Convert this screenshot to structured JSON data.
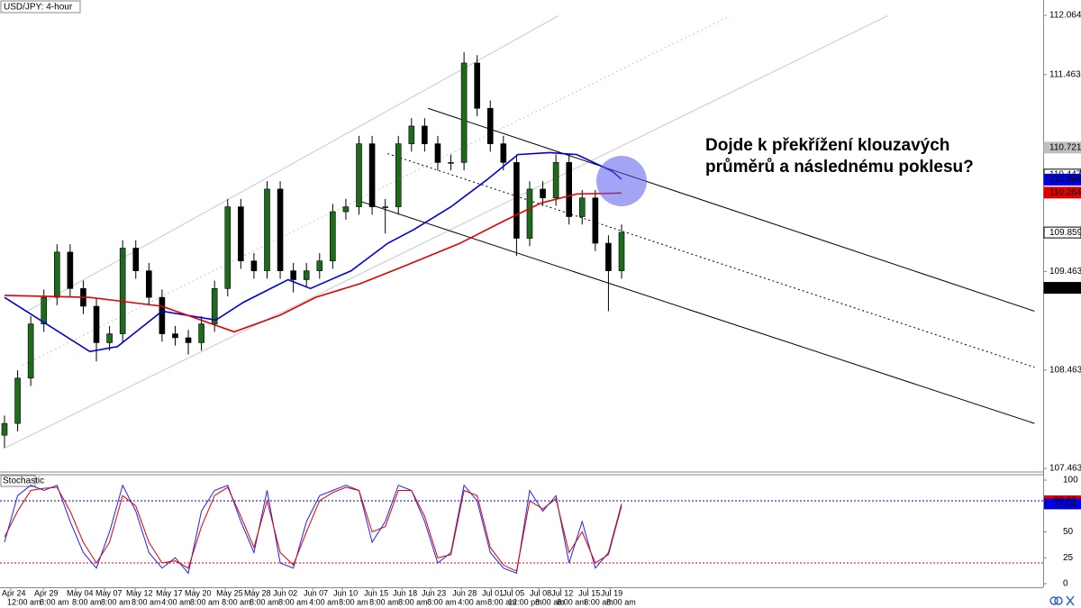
{
  "chart_data": {
    "type": "candlestick",
    "title": "USD/JPY: 4-hour",
    "annotation": [
      "Dojde k překřížení klouzavých",
      "průměrů a následnému poklesu?"
    ],
    "ylim": [
      107.436,
      112.22
    ],
    "yticks": [
      112.064,
      111.463,
      109.463,
      108.463,
      107.463
    ],
    "up_color": "#1e6b1e",
    "down_color": "#000000",
    "candles": {
      "open": [
        107.8,
        107.92,
        108.38,
        108.93,
        109.2,
        109.66,
        109.29,
        109.11,
        108.74,
        108.83,
        109.7,
        109.47,
        109.2,
        108.83,
        108.79,
        108.74,
        108.93,
        109.29,
        110.12,
        109.57,
        109.47,
        110.3,
        109.47,
        109.38,
        109.47,
        109.57,
        110.07,
        110.12,
        110.76,
        110.12,
        110.12,
        110.76,
        110.94,
        110.76,
        110.57,
        110.57,
        111.58,
        111.12,
        110.76,
        110.57,
        109.8,
        110.3,
        110.21,
        110.57,
        110.02,
        110.21,
        109.75,
        109.47
      ],
      "high": [
        108.0,
        108.46,
        109.01,
        109.28,
        109.74,
        109.74,
        109.37,
        109.19,
        108.91,
        109.78,
        109.78,
        109.55,
        109.28,
        108.91,
        108.87,
        109.01,
        109.37,
        110.2,
        110.2,
        109.65,
        110.38,
        110.38,
        109.55,
        109.55,
        109.65,
        110.15,
        110.2,
        110.84,
        110.84,
        110.2,
        110.84,
        111.02,
        111.02,
        110.84,
        110.65,
        111.69,
        111.66,
        111.2,
        110.84,
        110.65,
        110.38,
        110.38,
        110.65,
        110.65,
        110.29,
        110.29,
        109.83,
        109.94
      ],
      "low": [
        107.67,
        107.84,
        108.3,
        108.85,
        109.12,
        109.21,
        109.03,
        108.55,
        108.66,
        108.75,
        109.39,
        109.12,
        108.75,
        108.71,
        108.62,
        108.66,
        108.85,
        109.21,
        109.49,
        109.39,
        109.39,
        109.39,
        109.25,
        109.3,
        109.39,
        109.49,
        109.99,
        110.04,
        110.04,
        109.85,
        110.04,
        110.68,
        110.68,
        110.49,
        110.49,
        110.49,
        111.04,
        110.68,
        110.49,
        109.62,
        109.72,
        110.13,
        110.13,
        109.94,
        109.94,
        109.67,
        109.06,
        109.39
      ],
      "close": [
        107.92,
        108.38,
        108.93,
        109.2,
        109.66,
        109.29,
        109.11,
        108.74,
        108.83,
        109.7,
        109.47,
        109.2,
        108.83,
        108.79,
        108.74,
        108.93,
        109.29,
        110.12,
        109.57,
        109.47,
        110.3,
        109.47,
        109.38,
        109.47,
        109.57,
        110.07,
        110.12,
        110.76,
        110.12,
        110.12,
        110.76,
        110.94,
        110.76,
        110.57,
        110.57,
        111.58,
        111.12,
        110.76,
        110.57,
        109.8,
        110.3,
        110.21,
        110.57,
        110.02,
        110.21,
        109.75,
        109.47,
        109.86
      ]
    },
    "moving_averages": [
      {
        "color": "#0000dd",
        "x": [
          0,
          6.5,
          8.6,
          12,
          16.1,
          18.2,
          21.6,
          23.3,
          26.4,
          29.2,
          31.2,
          34,
          36.7,
          39.1,
          41.5,
          43.6,
          46.3,
          47
        ],
        "values": [
          109.2,
          108.65,
          108.7,
          109.06,
          108.97,
          109.15,
          109.38,
          109.29,
          109.47,
          109.75,
          109.89,
          110.12,
          110.39,
          110.65,
          110.67,
          110.65,
          110.48,
          110.4
        ]
      },
      {
        "color": "#e00000",
        "x": [
          0,
          6.5,
          12,
          17.5,
          21,
          23.7,
          27.1,
          30.5,
          34.7,
          38.1,
          40.9,
          43.6,
          47
        ],
        "values": [
          109.22,
          109.2,
          109.11,
          108.85,
          109.02,
          109.2,
          109.34,
          109.52,
          109.75,
          109.98,
          110.16,
          110.25,
          110.26
        ]
      }
    ],
    "trendlines": [
      {
        "x": [
          1.72,
          42.2
        ],
        "y": [
          109.06,
          112.06
        ],
        "style": "solid",
        "color": "#c8c8c8"
      },
      {
        "x": [
          1.37,
          55.25
        ],
        "y": [
          108.51,
          112.06
        ],
        "style": "dotted",
        "color": "#c8c8c8"
      },
      {
        "x": [
          0,
          67.26
        ],
        "y": [
          107.67,
          112.06
        ],
        "style": "solid",
        "color": "#c8c8c8"
      },
      {
        "x": [
          32.26,
          78.45
        ],
        "y": [
          111.12,
          109.06
        ],
        "style": "solid",
        "color": "#000000"
      },
      {
        "x": [
          29.17,
          78.45
        ],
        "y": [
          110.66,
          108.49
        ],
        "style": "dotted",
        "color": "#000000"
      },
      {
        "x": [
          26.77,
          78.45
        ],
        "y": [
          110.19,
          107.92
        ],
        "style": "solid",
        "color": "#000000"
      }
    ],
    "price_labels": [
      {
        "value": 110.721,
        "color": "#c0c0c0",
        "text_color": "#ffffff"
      },
      {
        "value": 110.447,
        "color": "#ffffff",
        "text_color": "#000000"
      },
      {
        "value": 110.396,
        "color": "#0000dd",
        "text_color": "#ffffff"
      },
      {
        "value": 110.264,
        "color": "#e00000",
        "text_color": "#ffffff"
      },
      {
        "value": 109.859,
        "color": "#ffffff",
        "text_color": "#000000"
      },
      {
        "value": 109.297,
        "color": "#000000",
        "text_color": "#ffffff"
      }
    ],
    "xticks": [
      {
        "value": 0.48,
        "label": "Apr 24"
      },
      {
        "value": 2.95,
        "label": "Apr 29"
      },
      {
        "value": 5.42,
        "label": "May 04"
      },
      {
        "value": 7.62,
        "label": "May 07"
      },
      {
        "value": 9.95,
        "label": "May 12"
      },
      {
        "value": 12.22,
        "label": "May 17"
      },
      {
        "value": 14.41,
        "label": "May 20"
      },
      {
        "value": 16.82,
        "label": "May 25"
      },
      {
        "value": 18.94,
        "label": "May 28"
      },
      {
        "value": 21.14,
        "label": "Jun 02"
      },
      {
        "value": 23.47,
        "label": "Jun 07"
      },
      {
        "value": 25.74,
        "label": "Jun 10"
      },
      {
        "value": 28.07,
        "label": "Jun 15"
      },
      {
        "value": 30.27,
        "label": "Jun 18"
      },
      {
        "value": 32.46,
        "label": "Jun 23"
      },
      {
        "value": 34.8,
        "label": "Jun 28"
      },
      {
        "value": 37.06,
        "label": "Jul 01"
      },
      {
        "value": 38.64,
        "label": "Jul 05"
      },
      {
        "value": 40.7,
        "label": "Jul 08"
      },
      {
        "value": 42.35,
        "label": "Jul 12"
      },
      {
        "value": 44.41,
        "label": "Jul 15"
      },
      {
        "value": 46.12,
        "label": "Jul 19"
      }
    ],
    "xtick_times": [
      "12:00 am",
      "8:00 am",
      "8:00 am",
      "8:00 am",
      "8:00 am",
      "4:00 am",
      "8:00 am",
      "8:00 am",
      "8:00 am",
      "8:00 am",
      "4:00 am",
      "8:00 am",
      "8:00 am",
      "8:00 am",
      "8:00 am",
      "4:00 am",
      "8:00 am",
      "12:00 pm",
      "8:00 am",
      "8:00 am",
      "8:00 am",
      "8:00 am"
    ],
    "stochastic": {
      "title": "Stochastic",
      "ylim": [
        -3.5,
        105.2
      ],
      "yticks": [
        100,
        50,
        25,
        0
      ],
      "levels": [
        {
          "value": 80,
          "color": "#0000cc"
        },
        {
          "value": 20,
          "color": "#e00000"
        }
      ],
      "series": [
        {
          "color": "#2222ff",
          "values": [
            40,
            85,
            95,
            90,
            95,
            60,
            30,
            15,
            50,
            95,
            70,
            30,
            15,
            25,
            10,
            70,
            90,
            95,
            60,
            30,
            90,
            20,
            15,
            60,
            85,
            90,
            95,
            90,
            40,
            60,
            95,
            90,
            60,
            20,
            30,
            95,
            80,
            30,
            15,
            10,
            90,
            70,
            85,
            20,
            60,
            15,
            30,
            77.02
          ]
        },
        {
          "color": "#e00000",
          "values": [
            45,
            70,
            90,
            92,
            93,
            70,
            40,
            20,
            40,
            85,
            75,
            40,
            20,
            22,
            15,
            55,
            85,
            93,
            65,
            35,
            80,
            30,
            18,
            50,
            80,
            88,
            93,
            90,
            50,
            55,
            90,
            90,
            65,
            25,
            28,
            90,
            85,
            35,
            18,
            12,
            80,
            72,
            82,
            30,
            50,
            20,
            28,
            75
          ]
        }
      ],
      "price_labels": [
        {
          "value": 80,
          "label": "80.00",
          "color": "#e00000",
          "text_color": "#ffffff"
        },
        {
          "value": 77.02,
          "color": "#0000dd",
          "text_color": "#ffffff"
        }
      ]
    }
  }
}
